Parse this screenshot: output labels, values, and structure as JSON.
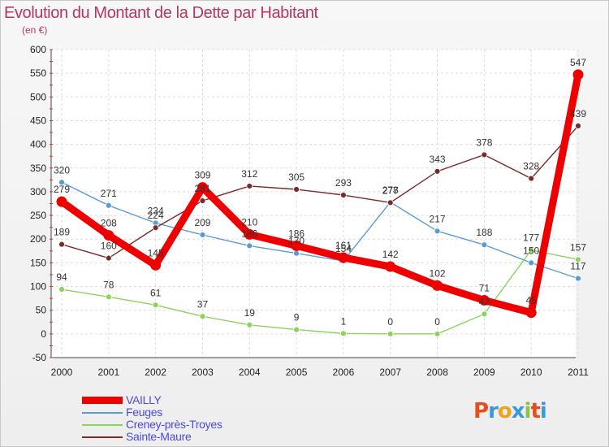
{
  "header": {
    "title": "Evolution du Montant de la Dette par Habitant",
    "unit": "(en €)"
  },
  "chart_data": {
    "type": "line",
    "title": "Evolution du Montant de la Dette par Habitant",
    "subtitle": "(en €)",
    "categories": [
      "2000",
      "2001",
      "2002",
      "2003",
      "2004",
      "2005",
      "2006",
      "2007",
      "2008",
      "2009",
      "2010",
      "2011"
    ],
    "ylim": [
      -50,
      600
    ],
    "yticks": [
      "-50",
      "0",
      "50",
      "100",
      "150",
      "200",
      "250",
      "300",
      "350",
      "400",
      "450",
      "500",
      "550",
      "600"
    ],
    "grid": true,
    "legend_position": "bottom-left",
    "series": [
      {
        "name": "VAILLY",
        "color": "#ee0000",
        "values": [
          279,
          208,
          145,
          309,
          210,
          186,
          161,
          142,
          102,
          71,
          45,
          547
        ],
        "labels": [
          "279",
          "208",
          "145",
          "309",
          "210",
          "186",
          "161",
          "142",
          "102",
          "71",
          "45",
          "547"
        ]
      },
      {
        "name": "Feuges",
        "color": "#5b9bd5",
        "values": [
          320,
          271,
          234,
          209,
          186,
          170,
          154,
          278,
          217,
          188,
          150,
          117
        ],
        "labels": [
          "320",
          "271",
          "234",
          "209",
          "186",
          "170",
          "154",
          "278",
          "217",
          "188",
          "150",
          "117"
        ]
      },
      {
        "name": "Creney-près-Troyes",
        "color": "#8bd35a",
        "values": [
          94,
          78,
          61,
          37,
          19,
          9,
          1,
          0,
          0,
          42,
          177,
          157
        ],
        "labels": [
          "94",
          "78",
          "61",
          "37",
          "19",
          "9",
          "1",
          "0",
          "0",
          "42",
          "177",
          "157"
        ]
      },
      {
        "name": "Sainte-Maure",
        "color": "#7b2a2a",
        "values": [
          189,
          160,
          224,
          281,
          312,
          305,
          293,
          277,
          343,
          378,
          328,
          439
        ],
        "labels": [
          "189",
          "160",
          "224",
          "281",
          "312",
          "305",
          "293",
          "277",
          "343",
          "378",
          "328",
          "439"
        ]
      }
    ]
  },
  "legend": {
    "items": [
      {
        "label": "VAILLY",
        "color": "#ee0000"
      },
      {
        "label": "Feuges",
        "color": "#5b9bd5"
      },
      {
        "label": "Creney-près-Troyes",
        "color": "#8bd35a"
      },
      {
        "label": "Sainte-Maure",
        "color": "#7b2a2a"
      }
    ]
  },
  "logo": {
    "text": "Proxiti",
    "letters": [
      "P",
      "r",
      "o",
      "x",
      "i",
      "t",
      "i"
    ],
    "colors": [
      "#e84d1c",
      "#3a9ad9",
      "#f0a31a",
      "#3a9ad9",
      "#8bc34a",
      "#e84d1c",
      "#3a9ad9"
    ]
  }
}
